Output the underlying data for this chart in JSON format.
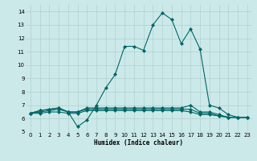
{
  "xlabel": "Humidex (Indice chaleur)",
  "background_color": "#cce9e9",
  "grid_color": "#b0d0d0",
  "line_color": "#006666",
  "xlim": [
    -0.5,
    23.5
  ],
  "ylim": [
    5,
    14.5
  ],
  "yticks": [
    5,
    6,
    7,
    8,
    9,
    10,
    11,
    12,
    13,
    14
  ],
  "xticks": [
    0,
    1,
    2,
    3,
    4,
    5,
    6,
    7,
    8,
    9,
    10,
    11,
    12,
    13,
    14,
    15,
    16,
    17,
    18,
    19,
    20,
    21,
    22,
    23
  ],
  "line1_x": [
    0,
    1,
    2,
    3,
    4,
    5,
    6,
    7,
    8,
    9,
    10,
    11,
    12,
    13,
    14,
    15,
    16,
    17,
    18,
    19,
    20,
    21,
    22,
    23
  ],
  "line1_y": [
    6.4,
    6.6,
    6.7,
    6.8,
    6.5,
    5.4,
    5.9,
    7.0,
    8.3,
    9.3,
    11.4,
    11.4,
    11.1,
    13.0,
    13.9,
    13.4,
    11.6,
    12.7,
    11.2,
    7.0,
    6.8,
    6.3,
    6.1,
    6.1
  ],
  "line2_x": [
    0,
    1,
    2,
    3,
    4,
    5,
    6,
    7,
    8,
    9,
    10,
    11,
    12,
    13,
    14,
    15,
    16,
    17,
    18,
    19,
    20,
    21,
    22,
    23
  ],
  "line2_y": [
    6.4,
    6.6,
    6.7,
    6.8,
    6.5,
    6.5,
    6.8,
    6.8,
    6.8,
    6.8,
    6.8,
    6.8,
    6.8,
    6.8,
    6.8,
    6.8,
    6.8,
    7.0,
    6.5,
    6.5,
    6.3,
    6.1,
    6.1,
    6.1
  ],
  "line3_x": [
    0,
    1,
    2,
    3,
    4,
    5,
    6,
    7,
    8,
    9,
    10,
    11,
    12,
    13,
    14,
    15,
    16,
    17,
    18,
    19,
    20,
    21,
    22,
    23
  ],
  "line3_y": [
    6.4,
    6.5,
    6.6,
    6.7,
    6.5,
    6.5,
    6.7,
    6.7,
    6.7,
    6.7,
    6.7,
    6.7,
    6.7,
    6.7,
    6.7,
    6.7,
    6.7,
    6.7,
    6.4,
    6.4,
    6.2,
    6.1,
    6.1,
    6.1
  ],
  "line4_x": [
    0,
    1,
    2,
    3,
    4,
    5,
    6,
    7,
    8,
    9,
    10,
    11,
    12,
    13,
    14,
    15,
    16,
    17,
    18,
    19,
    20,
    21,
    22,
    23
  ],
  "line4_y": [
    6.4,
    6.4,
    6.5,
    6.5,
    6.4,
    6.4,
    6.6,
    6.6,
    6.6,
    6.6,
    6.6,
    6.6,
    6.6,
    6.6,
    6.6,
    6.6,
    6.6,
    6.5,
    6.3,
    6.3,
    6.2,
    6.1,
    6.1,
    6.1
  ],
  "xlabel_fontsize": 5.5,
  "tick_fontsize": 5,
  "linewidth": 0.8,
  "markersize": 2.0
}
